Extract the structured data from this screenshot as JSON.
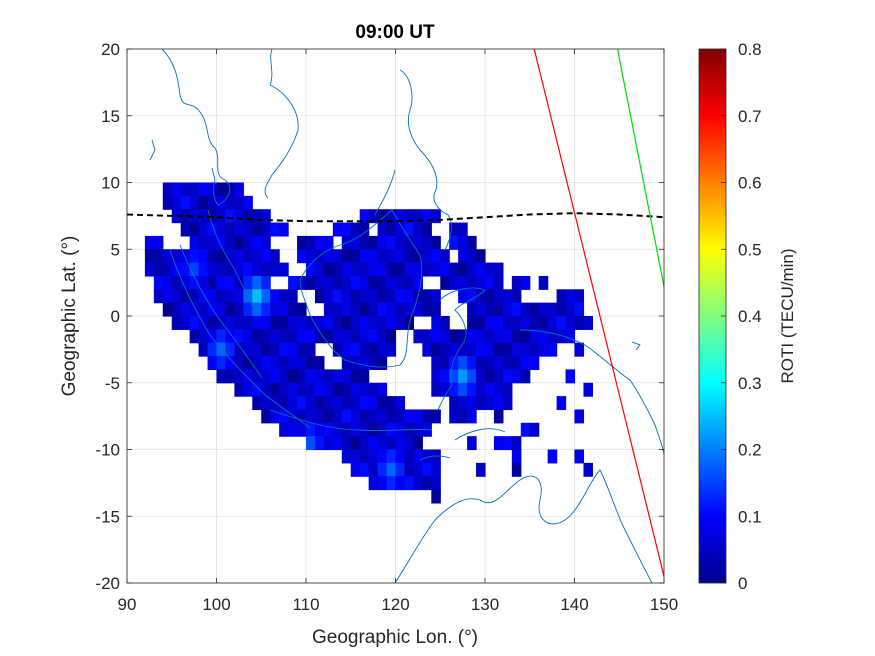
{
  "chart_data": {
    "type": "heatmap",
    "title": "09:00 UT",
    "xlabel": "Geographic Lon. (°)",
    "ylabel": "Geographic Lat. (°)",
    "colorbar_label": "ROTI (TECU/min)",
    "xlim": [
      90,
      150
    ],
    "ylim": [
      -20,
      20
    ],
    "xticks": [
      "90",
      "100",
      "110",
      "120",
      "130",
      "140",
      "150"
    ],
    "yticks": [
      "20",
      "15",
      "10",
      "5",
      "0",
      "-5",
      "-10",
      "-15",
      "-20"
    ],
    "clim": [
      0,
      0.8
    ],
    "cticks": [
      "0",
      "0.1",
      "0.2",
      "0.3",
      "0.4",
      "0.5",
      "0.6",
      "0.7",
      "0.8"
    ],
    "colormap": "jet",
    "grid": true,
    "cell_size_deg": 1,
    "coverage": [
      {
        "lat": 9,
        "lon": [
          [
            94,
            103
          ]
        ]
      },
      {
        "lat": 8,
        "lon": [
          [
            94,
            104
          ]
        ]
      },
      {
        "lat": 7,
        "lon": [
          [
            95,
            106
          ],
          [
            116,
            125
          ]
        ]
      },
      {
        "lat": 6,
        "lon": [
          [
            96,
            108
          ],
          [
            113,
            117
          ],
          [
            118,
            124
          ],
          [
            126,
            128
          ]
        ]
      },
      {
        "lat": 5,
        "lon": [
          [
            92,
            94
          ],
          [
            97,
            106
          ],
          [
            109,
            113
          ],
          [
            114,
            125
          ],
          [
            126,
            129
          ]
        ]
      },
      {
        "lat": 4,
        "lon": [
          [
            92,
            107
          ],
          [
            109,
            126
          ],
          [
            127,
            130
          ]
        ]
      },
      {
        "lat": 3,
        "lon": [
          [
            92,
            108
          ],
          [
            110,
            132
          ]
        ]
      },
      {
        "lat": 2,
        "lon": [
          [
            93,
            106
          ],
          [
            108,
            123
          ],
          [
            125,
            132
          ],
          [
            133,
            135
          ],
          [
            136,
            137
          ]
        ]
      },
      {
        "lat": 1,
        "lon": [
          [
            93,
            109
          ],
          [
            111,
            125
          ],
          [
            127,
            134
          ],
          [
            138,
            141
          ]
        ]
      },
      {
        "lat": 0,
        "lon": [
          [
            94,
            110
          ],
          [
            112,
            125
          ],
          [
            128,
            141
          ]
        ]
      },
      {
        "lat": -1,
        "lon": [
          [
            95,
            122
          ],
          [
            124,
            126
          ],
          [
            128,
            142
          ]
        ]
      },
      {
        "lat": -2,
        "lon": [
          [
            97,
            120
          ],
          [
            122,
            140
          ]
        ]
      },
      {
        "lat": -3,
        "lon": [
          [
            98,
            111
          ],
          [
            113,
            120
          ],
          [
            123,
            138
          ],
          [
            140,
            141
          ]
        ]
      },
      {
        "lat": -4,
        "lon": [
          [
            99,
            112
          ],
          [
            114,
            119
          ],
          [
            124,
            136
          ]
        ]
      },
      {
        "lat": -5,
        "lon": [
          [
            100,
            117
          ],
          [
            124,
            135
          ],
          [
            139,
            140
          ]
        ]
      },
      {
        "lat": -6,
        "lon": [
          [
            102,
            119
          ],
          [
            124,
            133
          ],
          [
            141,
            142
          ]
        ]
      },
      {
        "lat": -7,
        "lon": [
          [
            104,
            121
          ],
          [
            126,
            133
          ],
          [
            138,
            139
          ]
        ]
      },
      {
        "lat": -8,
        "lon": [
          [
            105,
            125
          ],
          [
            126,
            129
          ],
          [
            131,
            132
          ],
          [
            140,
            141
          ]
        ]
      },
      {
        "lat": -9,
        "lon": [
          [
            107,
            124
          ],
          [
            134,
            136
          ]
        ]
      },
      {
        "lat": -10,
        "lon": [
          [
            110,
            123
          ],
          [
            128,
            129
          ],
          [
            131,
            134
          ]
        ]
      },
      {
        "lat": -11,
        "lon": [
          [
            114,
            125
          ],
          [
            133,
            134
          ],
          [
            137,
            138
          ],
          [
            140,
            141
          ]
        ]
      },
      {
        "lat": -12,
        "lon": [
          [
            115,
            125
          ],
          [
            129,
            130
          ],
          [
            133,
            134
          ],
          [
            141,
            142
          ]
        ]
      },
      {
        "lat": -13,
        "lon": [
          [
            117,
            125
          ]
        ]
      },
      {
        "lat": -14,
        "lon": [
          [
            124,
            125
          ]
        ]
      }
    ],
    "hotspots": [
      {
        "lon": 104.5,
        "lat": 1.5,
        "roti": 0.25
      },
      {
        "lon": 127.5,
        "lat": -4.5,
        "roti": 0.22
      },
      {
        "lon": 100.5,
        "lat": -2.5,
        "roti": 0.18
      },
      {
        "lon": 119.5,
        "lat": -11.5,
        "roti": 0.18
      },
      {
        "lon": 110.5,
        "lat": -9.5,
        "roti": 0.16
      },
      {
        "lon": 97.5,
        "lat": 3.5,
        "roti": 0.15
      }
    ],
    "dip_equator": {
      "style": "black-dashed",
      "lon": [
        90,
        95,
        100,
        105,
        110,
        115,
        120,
        125,
        130,
        135,
        140,
        145,
        150
      ],
      "lat": [
        7.6,
        7.5,
        7.4,
        7.2,
        7.1,
        7.1,
        7.1,
        7.2,
        7.4,
        7.6,
        7.7,
        7.6,
        7.4
      ]
    },
    "lines": [
      {
        "color": "#ff0000",
        "lon": [
          135.5,
          150
        ],
        "lat": [
          20,
          -19.5
        ]
      },
      {
        "color": "#00dd00",
        "lon": [
          144.8,
          150
        ],
        "lat": [
          20,
          2.2
        ]
      }
    ],
    "coastline_color": "#0072bd"
  }
}
